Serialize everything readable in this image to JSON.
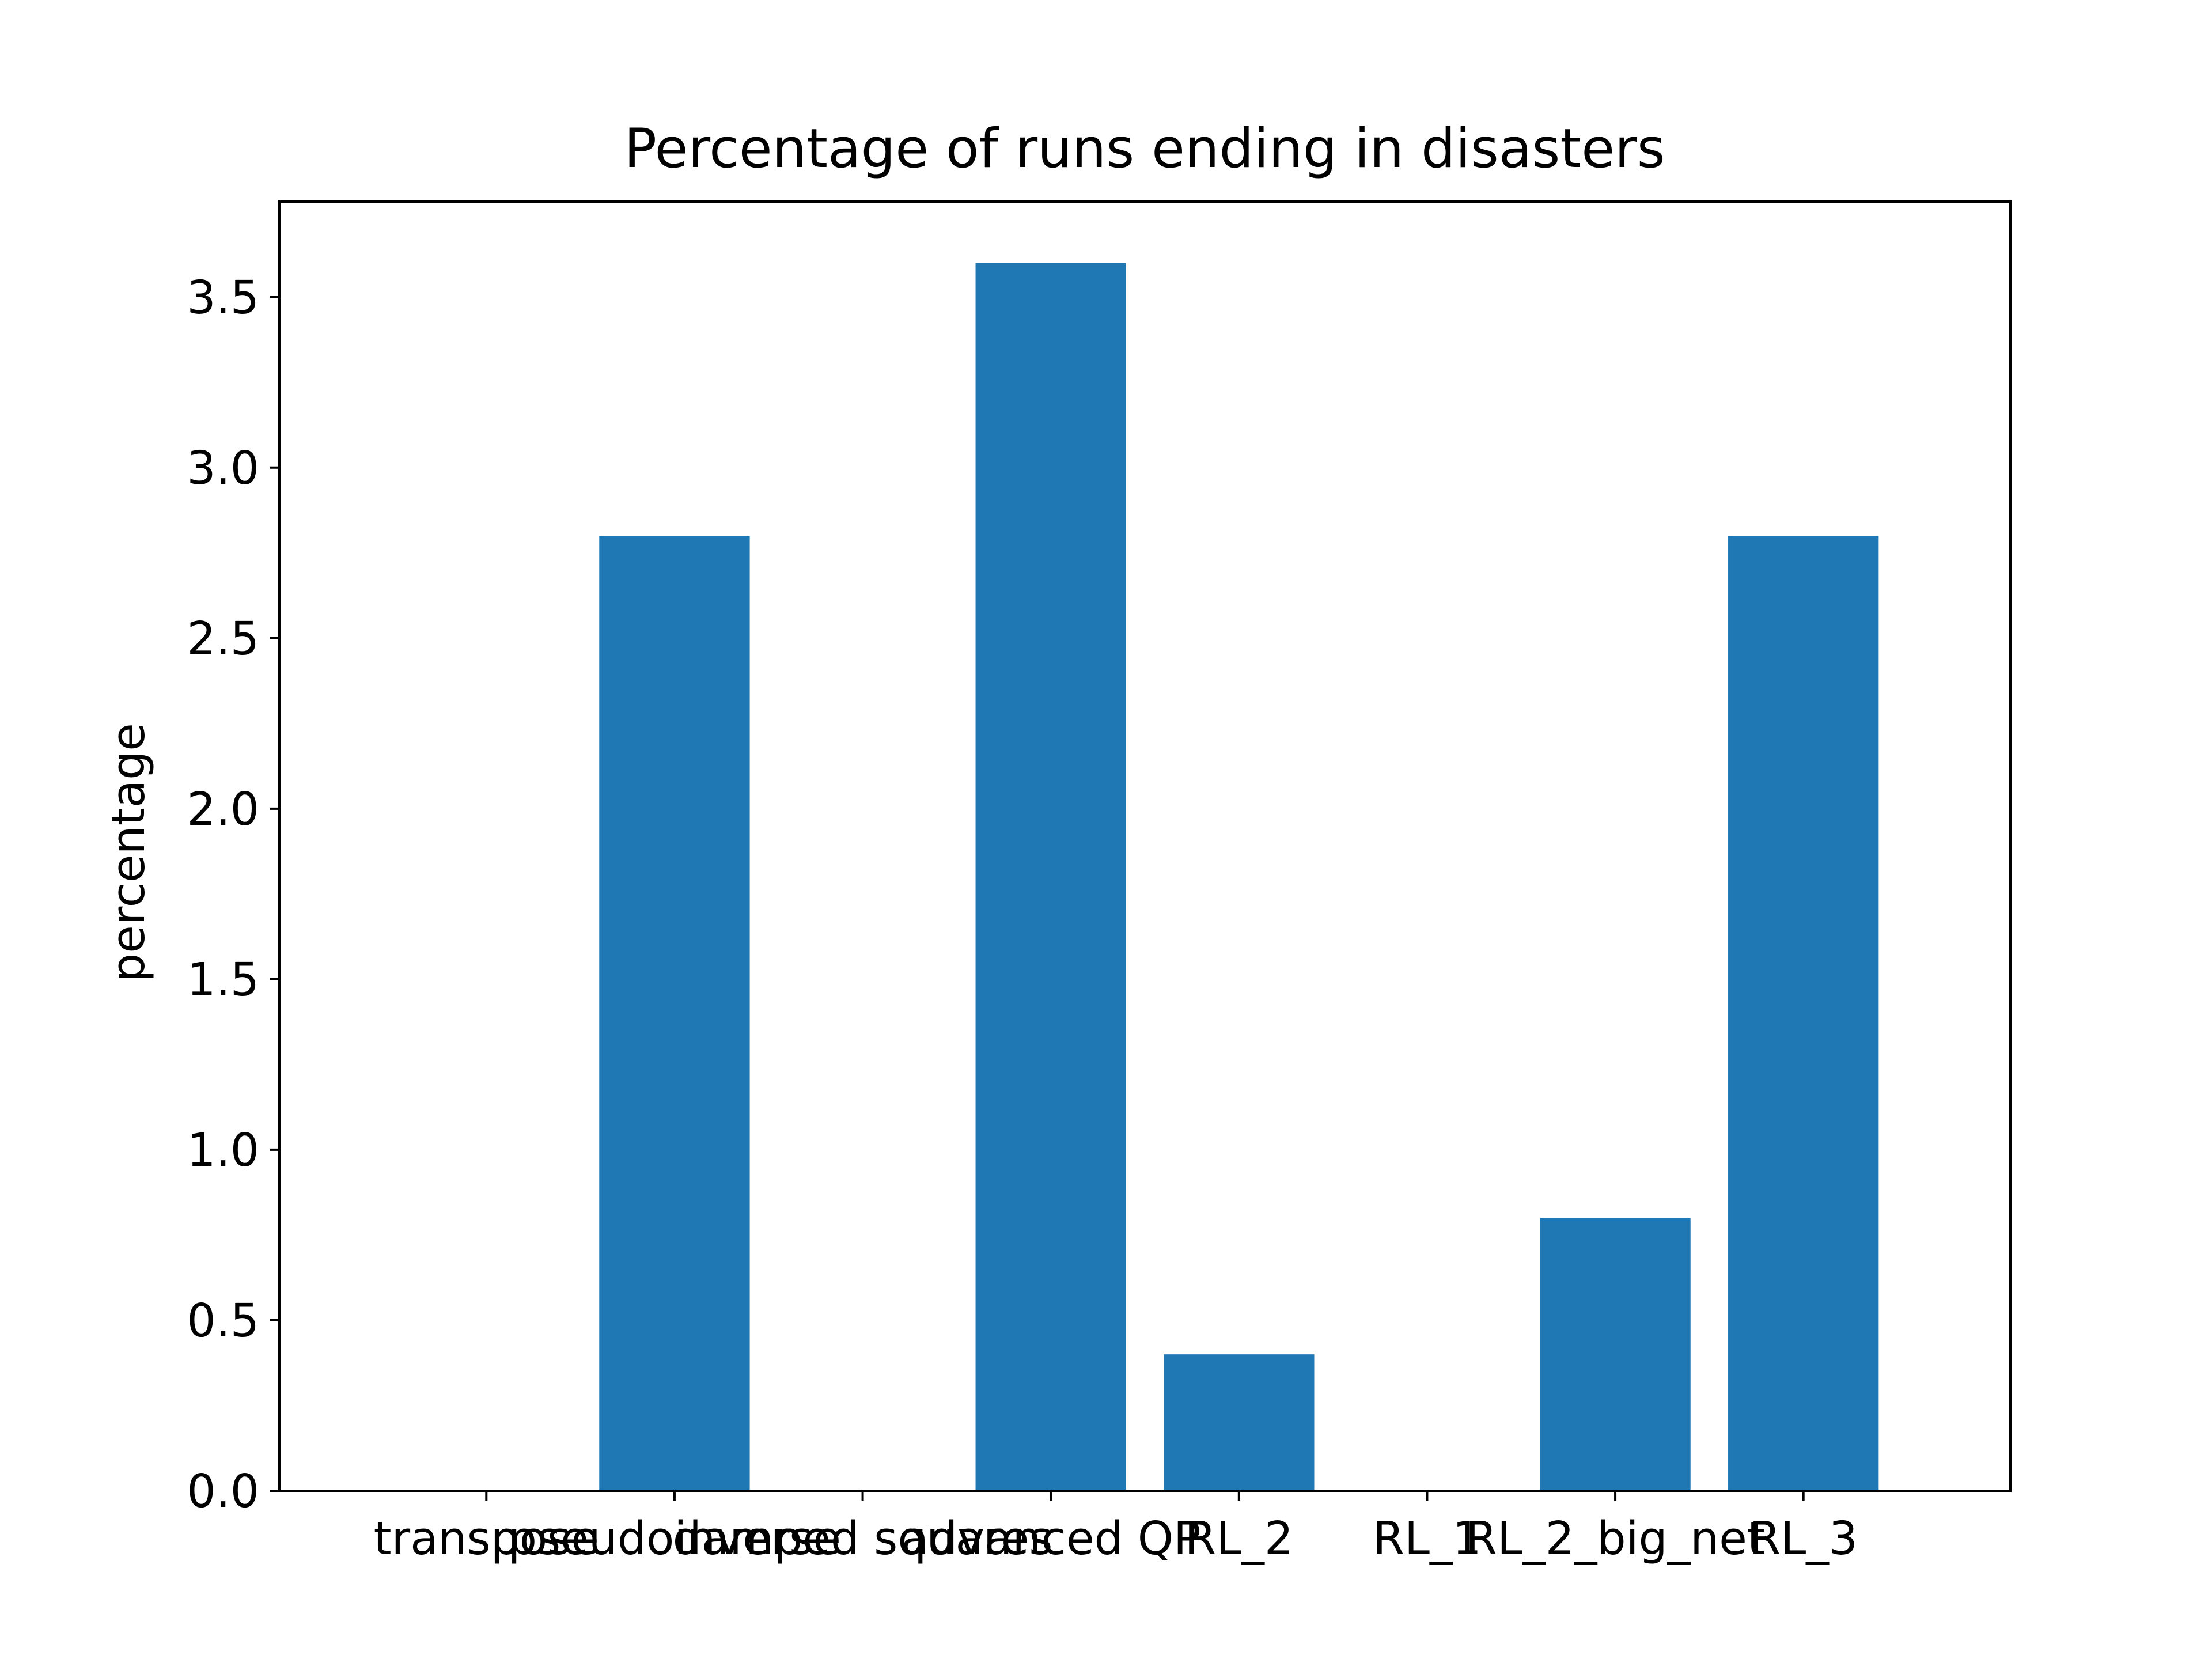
{
  "chart_data": {
    "type": "bar",
    "title": "Percentage of runs ending in disasters",
    "xlabel": "",
    "ylabel": "percentage",
    "categories": [
      "transpose",
      "pseudoinverse",
      "damped squares",
      "advanced QP",
      "RL_2",
      "RL_1",
      "RL_2_big_net",
      "RL_3"
    ],
    "values": [
      0.0,
      2.8,
      0.0,
      3.6,
      0.4,
      0.0,
      0.8,
      2.8
    ],
    "ylim": [
      0,
      3.78
    ],
    "yticks": [
      0.0,
      0.5,
      1.0,
      1.5,
      2.0,
      2.5,
      3.0,
      3.5
    ],
    "ytick_labels": [
      "0.0",
      "0.5",
      "1.0",
      "1.5",
      "2.0",
      "2.5",
      "3.0",
      "3.5"
    ],
    "grid": false,
    "legend": "none",
    "bar_color": "#1f77b4"
  }
}
